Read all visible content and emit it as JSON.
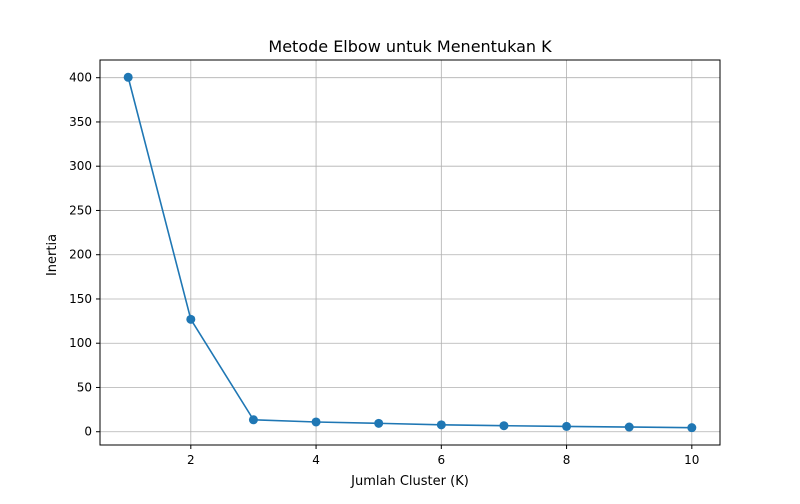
{
  "chart_data": {
    "type": "line",
    "title": "Metode Elbow untuk Menentukan K",
    "xlabel": "Jumlah Cluster (K)",
    "ylabel": "Inertia",
    "x": [
      1,
      2,
      3,
      4,
      5,
      6,
      7,
      8,
      9,
      10
    ],
    "series": [
      {
        "values": [
          400.5,
          127.0,
          13.5,
          11.0,
          9.5,
          7.8,
          6.8,
          6.0,
          5.3,
          4.6
        ]
      }
    ],
    "xlim": [
      0.55,
      10.45
    ],
    "ylim": [
      -15,
      420
    ],
    "xticks": [
      2,
      4,
      6,
      8,
      10
    ],
    "yticks": [
      0,
      50,
      100,
      150,
      200,
      250,
      300,
      350,
      400
    ],
    "grid": true,
    "marker": "circle",
    "color": "#1f77b4"
  }
}
